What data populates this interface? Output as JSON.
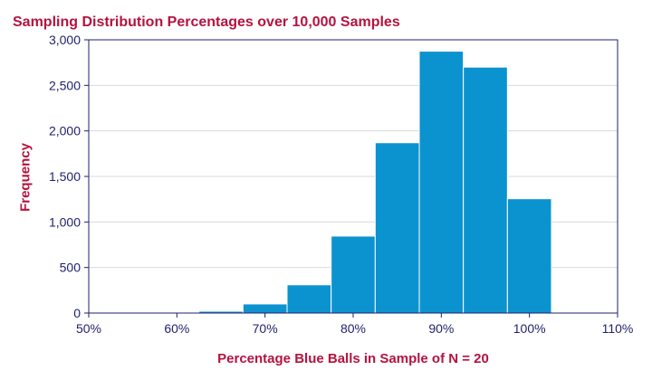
{
  "colors": {
    "title": "#b5123f",
    "axis_text": "#1f1f6e",
    "bar_fill": "#0b93cf",
    "bar_stroke": "#ffffff",
    "grid": "#d9d9d9",
    "frame": "#1f1f6e"
  },
  "chart_data": {
    "type": "bar",
    "title": "Sampling Distribution Percentages over 10,000 Samples",
    "xlabel": "Percentage Blue Balls in Sample of N = 20",
    "ylabel": "Frequency",
    "xlim": [
      50,
      110
    ],
    "ylim": [
      0,
      3000
    ],
    "bin_width": 5,
    "x_ticks": [
      {
        "value": 50,
        "label": "50%"
      },
      {
        "value": 60,
        "label": "60%"
      },
      {
        "value": 70,
        "label": "70%"
      },
      {
        "value": 80,
        "label": "80%"
      },
      {
        "value": 90,
        "label": "90%"
      },
      {
        "value": 100,
        "label": "100%"
      },
      {
        "value": 110,
        "label": "110%"
      }
    ],
    "y_ticks": [
      {
        "value": 0,
        "label": "0"
      },
      {
        "value": 500,
        "label": "500"
      },
      {
        "value": 1000,
        "label": "1,000"
      },
      {
        "value": 1500,
        "label": "1,500"
      },
      {
        "value": 2000,
        "label": "2,000"
      },
      {
        "value": 2500,
        "label": "2,500"
      },
      {
        "value": 3000,
        "label": "3,000"
      }
    ],
    "grid": true,
    "bins": [
      {
        "x": 60,
        "value": 3
      },
      {
        "x": 65,
        "value": 20
      },
      {
        "x": 70,
        "value": 100
      },
      {
        "x": 75,
        "value": 310
      },
      {
        "x": 80,
        "value": 845
      },
      {
        "x": 85,
        "value": 1870
      },
      {
        "x": 90,
        "value": 2875
      },
      {
        "x": 95,
        "value": 2700
      },
      {
        "x": 100,
        "value": 1255
      }
    ]
  }
}
